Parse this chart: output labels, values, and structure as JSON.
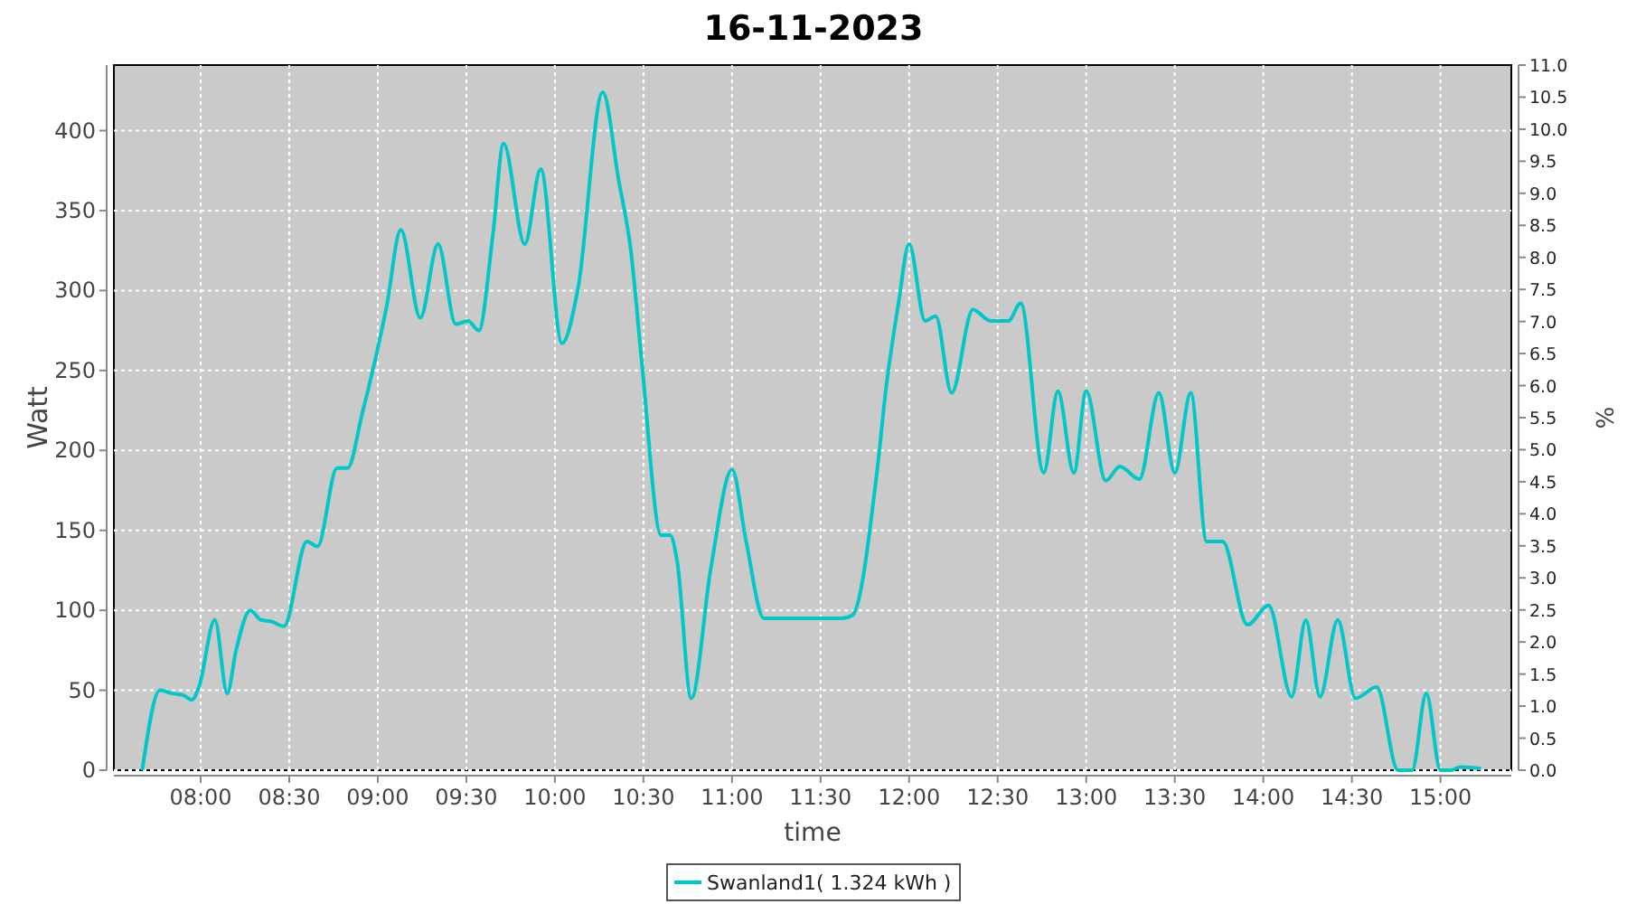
{
  "chart_data": {
    "type": "line",
    "title": "16-11-2023",
    "xlabel": "time",
    "ylabel": "Watt",
    "y2label": "%",
    "xlim": [
      7.51,
      15.4
    ],
    "ylim": [
      0,
      441
    ],
    "y2lim": [
      0,
      11
    ],
    "xticks": [
      {
        "value": 8,
        "label": "08:00"
      },
      {
        "value": 8.5,
        "label": "08:30"
      },
      {
        "value": 9,
        "label": "09:00"
      },
      {
        "value": 9.5,
        "label": "09:30"
      },
      {
        "value": 10,
        "label": "10:00"
      },
      {
        "value": 10.5,
        "label": "10:30"
      },
      {
        "value": 11,
        "label": "11:00"
      },
      {
        "value": 11.5,
        "label": "11:30"
      },
      {
        "value": 12,
        "label": "12:00"
      },
      {
        "value": 12.5,
        "label": "12:30"
      },
      {
        "value": 13,
        "label": "13:00"
      },
      {
        "value": 13.5,
        "label": "13:30"
      },
      {
        "value": 14,
        "label": "14:00"
      },
      {
        "value": 14.5,
        "label": "14:30"
      },
      {
        "value": 15,
        "label": "15:00"
      }
    ],
    "yticks": [
      0,
      50,
      100,
      150,
      200,
      250,
      300,
      350,
      400
    ],
    "y2ticks": [
      {
        "value": 0,
        "label": "0.0"
      },
      {
        "value": 0.5,
        "label": "0.5"
      },
      {
        "value": 1,
        "label": "1.0"
      },
      {
        "value": 1.5,
        "label": "1.5"
      },
      {
        "value": 2,
        "label": "2.0"
      },
      {
        "value": 2.5,
        "label": "2.5"
      },
      {
        "value": 3,
        "label": "3.0"
      },
      {
        "value": 3.5,
        "label": "3.5"
      },
      {
        "value": 4,
        "label": "4.0"
      },
      {
        "value": 4.5,
        "label": "4.5"
      },
      {
        "value": 5,
        "label": "5.0"
      },
      {
        "value": 5.5,
        "label": "5.5"
      },
      {
        "value": 6,
        "label": "6.0"
      },
      {
        "value": 6.5,
        "label": "6.5"
      },
      {
        "value": 7,
        "label": "7.0"
      },
      {
        "value": 7.5,
        "label": "7.5"
      },
      {
        "value": 8,
        "label": "8.0"
      },
      {
        "value": 8.5,
        "label": "8.5"
      },
      {
        "value": 9,
        "label": "9.0"
      },
      {
        "value": 9.5,
        "label": "9.5"
      },
      {
        "value": 10,
        "label": "10.0"
      },
      {
        "value": 10.5,
        "label": "10.5"
      },
      {
        "value": 11,
        "label": "11.0"
      }
    ],
    "grid": true,
    "legend": "bottom",
    "x": [
      7.67,
      7.77,
      7.84,
      7.9,
      7.95,
      7.99,
      8.08,
      8.15,
      8.2,
      8.28,
      8.34,
      8.4,
      8.47,
      8.6,
      8.66,
      8.77,
      8.83,
      8.91,
      9.05,
      9.13,
      9.24,
      9.34,
      9.44,
      9.51,
      9.57,
      9.65,
      9.71,
      9.83,
      9.92,
      10.04,
      10.13,
      10.27,
      10.36,
      10.43,
      10.49,
      10.6,
      10.65,
      10.69,
      10.77,
      10.88,
      11.0,
      11.08,
      11.18,
      11.28,
      11.62,
      11.68,
      11.82,
      11.87,
      11.94,
      12.0,
      12.09,
      12.15,
      12.24,
      12.36,
      12.46,
      12.56,
      12.63,
      12.76,
      12.84,
      12.93,
      13.0,
      13.11,
      13.19,
      13.3,
      13.41,
      13.5,
      13.59,
      13.68,
      13.77,
      13.91,
      14.03,
      14.16,
      14.24,
      14.32,
      14.42,
      14.52,
      14.64,
      14.76,
      14.84,
      14.92,
      15.0,
      15.06,
      15.11,
      15.23
    ],
    "series": [
      {
        "name": "Swanland1( 1.324 kWh )",
        "color": "#00c8c8",
        "values": [
          0,
          50,
          48,
          47,
          44,
          52,
          94,
          48,
          75,
          100,
          94,
          93,
          90,
          143,
          140,
          189,
          189,
          222,
          290,
          338,
          283,
          329,
          279,
          281,
          275,
          335,
          392,
          329,
          376,
          267,
          301,
          424,
          369,
          324,
          256,
          147,
          147,
          131,
          45,
          126,
          188,
          143,
          95,
          95,
          95,
          97,
          188,
          239,
          292,
          329,
          281,
          284,
          236,
          288,
          281,
          281,
          292,
          186,
          237,
          186,
          237,
          181,
          190,
          182,
          236,
          186,
          236,
          143,
          143,
          91,
          103,
          46,
          94,
          46,
          94,
          45,
          52,
          0,
          0,
          48,
          0,
          0,
          2,
          1
        ]
      }
    ]
  }
}
